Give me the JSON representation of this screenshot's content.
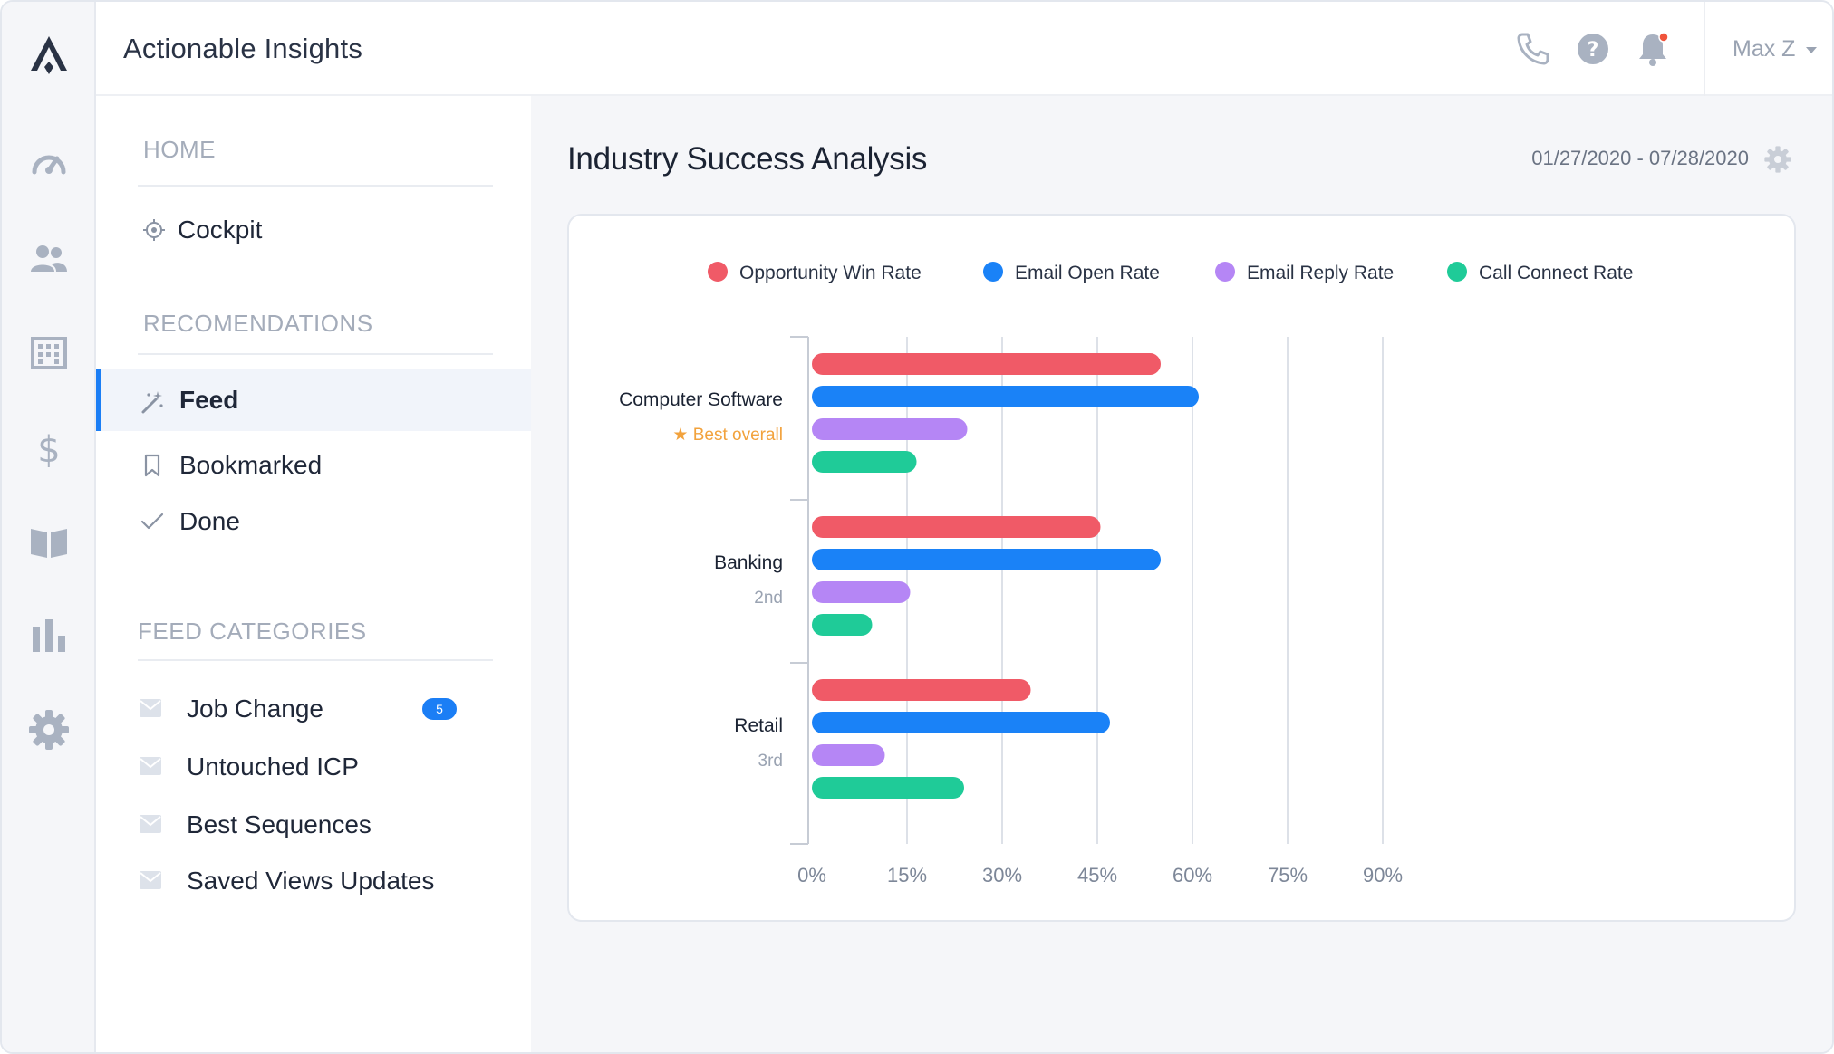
{
  "app": {
    "title": "Actionable Insights"
  },
  "rail": {
    "items": [
      {
        "name": "logo",
        "icon": "logo-icon"
      },
      {
        "name": "dashboard",
        "icon": "speedometer-icon"
      },
      {
        "name": "people",
        "icon": "people-icon"
      },
      {
        "name": "companies",
        "icon": "building-icon"
      },
      {
        "name": "deals",
        "icon": "dollar-icon"
      },
      {
        "name": "playbooks",
        "icon": "book-icon"
      },
      {
        "name": "reports",
        "icon": "bar-chart-icon"
      },
      {
        "name": "settings",
        "icon": "gear-icon"
      }
    ]
  },
  "topbar": {
    "icons": [
      "phone-icon",
      "help-icon",
      "bell-icon"
    ],
    "notification_dot_color": "#f0543c",
    "user_name": "Max Z"
  },
  "sidebar": {
    "home_heading": "HOME",
    "home_items": [
      {
        "label": "Cockpit",
        "icon": "target-icon"
      }
    ],
    "recs_heading": "RECOMENDATIONS",
    "recs_items": [
      {
        "label": "Feed",
        "icon": "magic-wand-icon",
        "active": true
      },
      {
        "label": "Bookmarked",
        "icon": "bookmark-icon"
      },
      {
        "label": "Done",
        "icon": "check-icon"
      }
    ],
    "categories_heading": "FEED CATEGORIES",
    "categories": [
      {
        "label": "Job Change",
        "badge": "5",
        "icon": "mail-icon"
      },
      {
        "label": "Untouched ICP",
        "icon": "mail-icon"
      },
      {
        "label": "Best Sequences",
        "icon": "mail-icon"
      },
      {
        "label": "Saved Views Updates",
        "icon": "mail-icon"
      }
    ]
  },
  "main": {
    "title": "Industry Success Analysis",
    "date_range": "01/27/2020 - 07/28/2020"
  },
  "colors": {
    "accent": "#1b7ef5",
    "win": "#f05a67",
    "open": "#1a82f7",
    "reply": "#b586f5",
    "call": "#1fcb98"
  },
  "chart_data": {
    "type": "bar",
    "orientation": "horizontal",
    "title": "",
    "xlabel": "",
    "ylabel": "",
    "xlim": [
      0,
      90
    ],
    "x_ticks": [
      0,
      15,
      30,
      45,
      60,
      75,
      90
    ],
    "tick_suffix": "%",
    "grid": true,
    "legend_position": "top-center",
    "categories": [
      {
        "name": "Computer Software",
        "rank": "Best overall",
        "best": true
      },
      {
        "name": "Banking",
        "rank": "2nd",
        "best": false
      },
      {
        "name": "Retail",
        "rank": "3rd",
        "best": false
      }
    ],
    "series": [
      {
        "name": "Opportunity Win Rate",
        "color": "#f05a67",
        "values": [
          55,
          45.5,
          34.5
        ]
      },
      {
        "name": "Email Open Rate",
        "color": "#1a82f7",
        "values": [
          61,
          55,
          47
        ]
      },
      {
        "name": "Email Reply Rate",
        "color": "#b586f5",
        "values": [
          24.5,
          15.5,
          11.5
        ]
      },
      {
        "name": "Call Connect Rate",
        "color": "#1fcb98",
        "values": [
          16.5,
          9.5,
          24
        ]
      }
    ]
  }
}
